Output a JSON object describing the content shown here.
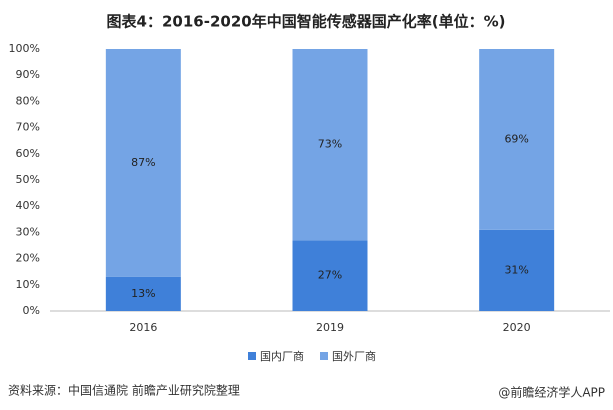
{
  "chart_data": {
    "type": "stacked_bar",
    "title": "图表4：2016-2020年中国智能传感器国产化率(单位：%)",
    "categories": [
      "2016",
      "2019",
      "2020"
    ],
    "series": [
      {
        "name": "国内厂商",
        "color": "#3f80d9",
        "values": [
          13,
          27,
          31
        ],
        "value_labels": [
          "13%",
          "27%",
          "31%"
        ]
      },
      {
        "name": "国外厂商",
        "color": "#74a4e5",
        "values": [
          87,
          73,
          69
        ],
        "value_labels": [
          "87%",
          "73%",
          "69%"
        ]
      }
    ],
    "ylim": [
      0,
      100
    ],
    "yticks": [
      {
        "value": 0,
        "label": "0%"
      },
      {
        "value": 10,
        "label": "10%"
      },
      {
        "value": 20,
        "label": "20%"
      },
      {
        "value": 30,
        "label": "30%"
      },
      {
        "value": 40,
        "label": "40%"
      },
      {
        "value": 50,
        "label": "50%"
      },
      {
        "value": 60,
        "label": "60%"
      },
      {
        "value": 70,
        "label": "70%"
      },
      {
        "value": 80,
        "label": "80%"
      },
      {
        "value": 90,
        "label": "90%"
      },
      {
        "value": 100,
        "label": "100%"
      }
    ],
    "legend": "bottom",
    "source": "资料来源：中国信通院 前瞻产业研究院整理",
    "watermark": "@前瞻经济学人APP"
  }
}
